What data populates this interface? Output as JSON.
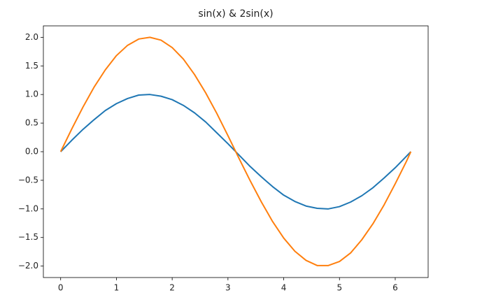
{
  "chart_data": {
    "type": "line",
    "title": "sin(x) & 2sin(x)",
    "x": [
      0,
      0.2,
      0.4,
      0.6,
      0.8,
      1.0,
      1.2,
      1.4,
      1.6,
      1.8,
      2.0,
      2.2,
      2.4,
      2.6,
      2.8,
      3.0,
      3.2,
      3.4,
      3.6,
      3.8,
      4.0,
      4.2,
      4.4,
      4.6,
      4.8,
      5.0,
      5.2,
      5.4,
      5.6,
      5.8,
      6.0,
      6.2,
      6.28
    ],
    "series": [
      {
        "color": "#1f77b4",
        "values": [
          0,
          0.2,
          0.39,
          0.56,
          0.72,
          0.84,
          0.93,
          0.99,
          1.0,
          0.97,
          0.91,
          0.81,
          0.68,
          0.52,
          0.33,
          0.14,
          -0.06,
          -0.26,
          -0.44,
          -0.61,
          -0.76,
          -0.87,
          -0.95,
          -0.99,
          -1.0,
          -0.96,
          -0.88,
          -0.77,
          -0.63,
          -0.46,
          -0.28,
          -0.08,
          0
        ]
      },
      {
        "color": "#ff7f0e",
        "values": [
          0,
          0.4,
          0.78,
          1.13,
          1.43,
          1.68,
          1.86,
          1.97,
          2.0,
          1.95,
          1.82,
          1.62,
          1.35,
          1.03,
          0.67,
          0.28,
          -0.12,
          -0.51,
          -0.88,
          -1.22,
          -1.51,
          -1.74,
          -1.9,
          -1.99,
          -1.99,
          -1.92,
          -1.77,
          -1.54,
          -1.26,
          -0.93,
          -0.56,
          -0.17,
          0
        ]
      }
    ],
    "xlim": [
      -0.31,
      6.59
    ],
    "xticks": [
      0,
      1,
      2,
      3,
      4,
      5,
      6
    ],
    "ylim": [
      -2.2,
      2.2
    ],
    "yticks": [
      {
        "value": -2.0,
        "label": "−2.0"
      },
      {
        "value": -1.5,
        "label": "−1.5"
      },
      {
        "value": -1.0,
        "label": "−1.0"
      },
      {
        "value": -0.5,
        "label": "−0.5"
      },
      {
        "value": 0.0,
        "label": "0.0"
      },
      {
        "value": 0.5,
        "label": "0.5"
      },
      {
        "value": 1.0,
        "label": "1.0"
      },
      {
        "value": 1.5,
        "label": "1.5"
      },
      {
        "value": 2.0,
        "label": "2.0"
      }
    ],
    "grid": false
  }
}
